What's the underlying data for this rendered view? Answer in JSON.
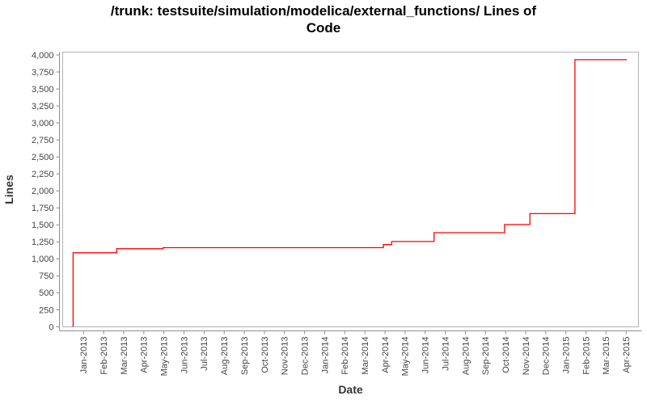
{
  "title": {
    "full": "/trunk: testsuite/simulation/modelica/external_functions/ Lines of Code",
    "line1": "/trunk: testsuite/simulation/modelica/external_functions/ Lines of",
    "line2": "Code"
  },
  "chart_data": {
    "type": "line",
    "line_style": "step",
    "title": "/trunk: testsuite/simulation/modelica/external_functions/ Lines of Code",
    "xlabel": "Date",
    "ylabel": "Lines",
    "legend": false,
    "grid": false,
    "line_color": "#ff0000",
    "axis_color": "#8f8f8f",
    "tick_label_color": "#444444",
    "axis_label_color": "#333333",
    "ylim": [
      0,
      4000
    ],
    "y_tick_step": 250,
    "y_tick_labels": [
      "0",
      "250",
      "500",
      "750",
      "1,000",
      "1,250",
      "1,500",
      "1,750",
      "2,000",
      "2,250",
      "2,500",
      "2,750",
      "3,000",
      "3,250",
      "3,500",
      "3,750",
      "4,000"
    ],
    "x_tick_labels": [
      "Jan-2013",
      "Feb-2013",
      "Mar-2013",
      "Apr-2013",
      "May-2013",
      "Jun-2013",
      "Jul-2013",
      "Aug-2013",
      "Sep-2013",
      "Oct-2013",
      "Nov-2013",
      "Dec-2013",
      "Jan-2014",
      "Feb-2014",
      "Mar-2014",
      "Apr-2014",
      "May-2014",
      "Jun-2014",
      "Jul-2014",
      "Aug-2014",
      "Sep-2014",
      "Oct-2014",
      "Nov-2014",
      "Dec-2014",
      "Jan-2015",
      "Feb-2015",
      "Mar-2015",
      "Apr-2015"
    ],
    "x_unit": "months relative to Jan-2013 tick",
    "xlim": [
      -1.04,
      27.61
    ],
    "series": [
      {
        "name": "Lines of Code",
        "color": "#ff0000",
        "points": [
          [
            -0.52,
            0
          ],
          [
            -0.52,
            1090
          ],
          [
            1.65,
            1090
          ],
          [
            1.65,
            1150
          ],
          [
            3.96,
            1150
          ],
          [
            3.96,
            1165
          ],
          [
            14.92,
            1165
          ],
          [
            14.92,
            1210
          ],
          [
            15.33,
            1210
          ],
          [
            15.33,
            1255
          ],
          [
            17.44,
            1255
          ],
          [
            17.44,
            1385
          ],
          [
            20.95,
            1385
          ],
          [
            20.95,
            1505
          ],
          [
            22.21,
            1505
          ],
          [
            22.21,
            1665
          ],
          [
            24.45,
            1665
          ],
          [
            24.45,
            3930
          ],
          [
            27.03,
            3930
          ]
        ]
      }
    ],
    "steps_summary": [
      {
        "date": "Dec 2012",
        "lines": 1090
      },
      {
        "date": "Feb 2013",
        "lines": 1150
      },
      {
        "date": "May 2013",
        "lines": 1165
      },
      {
        "date": "Apr 2014",
        "lines": 1210
      },
      {
        "date": "Apr 2014",
        "lines": 1255
      },
      {
        "date": "Jun 2014",
        "lines": 1385
      },
      {
        "date": "Oct 2014",
        "lines": 1505
      },
      {
        "date": "Nov 2014",
        "lines": 1665
      },
      {
        "date": "Jan 2015",
        "lines": 3930
      }
    ]
  }
}
